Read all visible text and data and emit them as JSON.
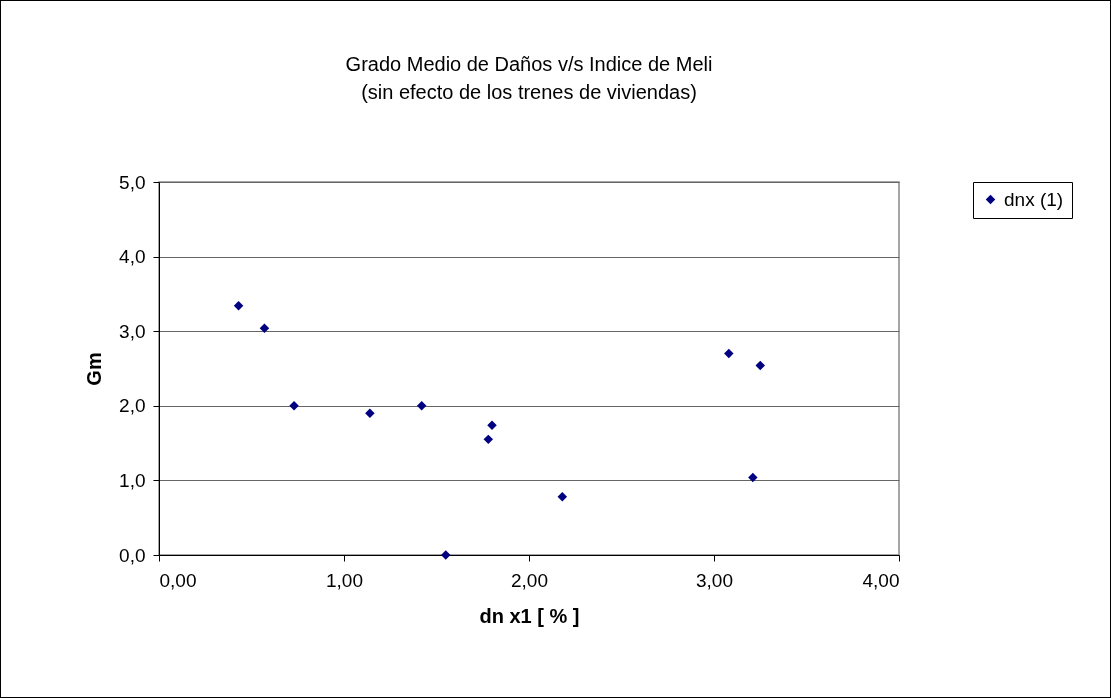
{
  "chart_data": {
    "type": "scatter",
    "title": "Grado Medio de Daños v/s Indice de Meli",
    "subtitle": "(sin efecto de los trenes de viviendas)",
    "xlabel": "dn x1 [ % ]",
    "ylabel": "Gm",
    "x": [
      0.43,
      0.57,
      0.73,
      1.14,
      1.42,
      1.55,
      1.78,
      1.8,
      2.18,
      3.08,
      3.25,
      3.21
    ],
    "series": [
      {
        "name": "dnx (1)",
        "color": "#000080",
        "values": [
          3.34,
          3.04,
          2.0,
          1.9,
          2.0,
          0.0,
          1.55,
          1.74,
          0.78,
          2.7,
          2.54,
          1.04
        ]
      }
    ],
    "xlim": [
      0,
      4
    ],
    "xticks": [
      {
        "value": 0,
        "label": "0,00"
      },
      {
        "value": 1,
        "label": "1,00"
      },
      {
        "value": 2,
        "label": "2,00"
      },
      {
        "value": 3,
        "label": "3,00"
      },
      {
        "value": 4,
        "label": "4,00"
      }
    ],
    "ylim": [
      0,
      5
    ],
    "yticks": [
      {
        "value": 0,
        "label": "0,0"
      },
      {
        "value": 1,
        "label": "1,0"
      },
      {
        "value": 2,
        "label": "2,0"
      },
      {
        "value": 3,
        "label": "3,0"
      },
      {
        "value": 4,
        "label": "4,0"
      },
      {
        "value": 5,
        "label": "5,0"
      }
    ],
    "grid": "y",
    "legend": "right",
    "marker": "diamond"
  }
}
